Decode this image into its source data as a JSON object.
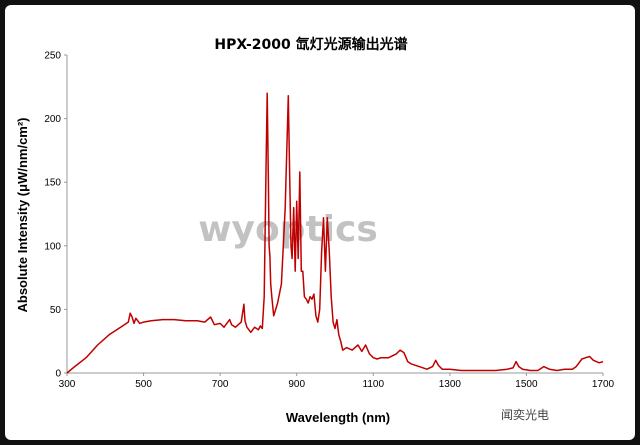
{
  "chart_data": {
    "type": "line",
    "title": "HPX-2000 氙灯光源输出光谱",
    "xlabel": "Wavelength (nm)",
    "ylabel": "Absolute Intensity  (μW/nm/cm²)",
    "xlim": [
      300,
      1700
    ],
    "ylim": [
      0,
      250
    ],
    "xticks": [
      300,
      500,
      700,
      900,
      1100,
      1300,
      1500,
      1700
    ],
    "yticks": [
      0,
      50,
      100,
      150,
      200,
      250
    ],
    "xtick_labels": [
      "300",
      "500",
      "700",
      "900",
      "1100",
      "1300",
      "1500",
      "1700"
    ],
    "ytick_labels": [
      "0",
      "50",
      "100",
      "150",
      "200",
      "250"
    ],
    "grid": false,
    "line_color": "#c00000",
    "series": [
      {
        "x": [
          300,
          320,
          350,
          380,
          410,
          440,
          460,
          465,
          470,
          475,
          480,
          490,
          500,
          520,
          550,
          580,
          610,
          640,
          660,
          675,
          685,
          700,
          710,
          725,
          730,
          740,
          755,
          762,
          765,
          770,
          780,
          790,
          800,
          805,
          810,
          815,
          820,
          823,
          826,
          828,
          830,
          832,
          835,
          840,
          845,
          850,
          860,
          870,
          878,
          882,
          885,
          888,
          892,
          896,
          900,
          904,
          908,
          912,
          916,
          920,
          925,
          930,
          935,
          940,
          945,
          950,
          955,
          960,
          965,
          970,
          975,
          980,
          985,
          990,
          995,
          1000,
          1005,
          1010,
          1015,
          1020,
          1030,
          1045,
          1060,
          1070,
          1080,
          1090,
          1100,
          1110,
          1120,
          1140,
          1160,
          1170,
          1180,
          1190,
          1200,
          1220,
          1240,
          1255,
          1263,
          1270,
          1280,
          1300,
          1330,
          1360,
          1390,
          1420,
          1450,
          1465,
          1473,
          1480,
          1490,
          1510,
          1530,
          1545,
          1560,
          1580,
          1600,
          1620,
          1630,
          1645,
          1655,
          1665,
          1675,
          1690,
          1700
        ],
        "y": [
          0,
          5,
          12,
          22,
          30,
          36,
          40,
          47,
          44,
          39,
          43,
          39,
          40,
          41,
          42,
          42,
          41,
          41,
          40,
          44,
          38,
          39,
          36,
          42,
          38,
          36,
          40,
          54,
          41,
          36,
          32,
          36,
          34,
          37,
          35,
          60,
          165,
          220,
          150,
          100,
          92,
          70,
          60,
          45,
          50,
          55,
          70,
          130,
          218,
          150,
          100,
          90,
          130,
          80,
          135,
          90,
          158,
          80,
          80,
          60,
          58,
          55,
          60,
          58,
          62,
          45,
          40,
          50,
          95,
          122,
          80,
          122,
          95,
          60,
          40,
          35,
          42,
          30,
          25,
          18,
          20,
          18,
          22,
          17,
          22,
          15,
          12,
          11,
          12,
          12,
          15,
          18,
          16,
          9,
          7,
          5,
          3,
          5,
          10,
          6,
          3,
          3,
          2,
          2,
          2,
          2,
          3,
          4,
          9,
          5,
          3,
          2,
          2,
          5,
          3,
          2,
          3,
          3,
          5,
          11,
          12,
          13,
          10,
          8,
          9
        ]
      }
    ],
    "watermark": "wyoptics",
    "signature": "闻奕光电"
  }
}
